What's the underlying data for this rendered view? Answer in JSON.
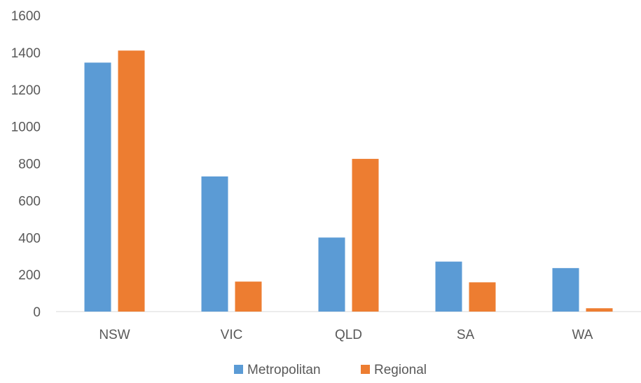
{
  "chart_data": {
    "type": "bar",
    "title": "",
    "xlabel": "",
    "ylabel": "",
    "categories": [
      "NSW",
      "VIC",
      "QLD",
      "SA",
      "WA"
    ],
    "series": [
      {
        "name": "Metropolitan",
        "color": "#5B9BD5",
        "values": [
          1345,
          730,
          400,
          270,
          235
        ]
      },
      {
        "name": "Regional",
        "color": "#ED7D31",
        "values": [
          1410,
          162,
          825,
          158,
          18
        ]
      }
    ],
    "ylim": [
      0,
      1600
    ],
    "yticks": [
      "0",
      "200",
      "400",
      "600",
      "800",
      "1000",
      "1200",
      "1400",
      "1600"
    ],
    "grid": false,
    "legend_position": "bottom"
  }
}
